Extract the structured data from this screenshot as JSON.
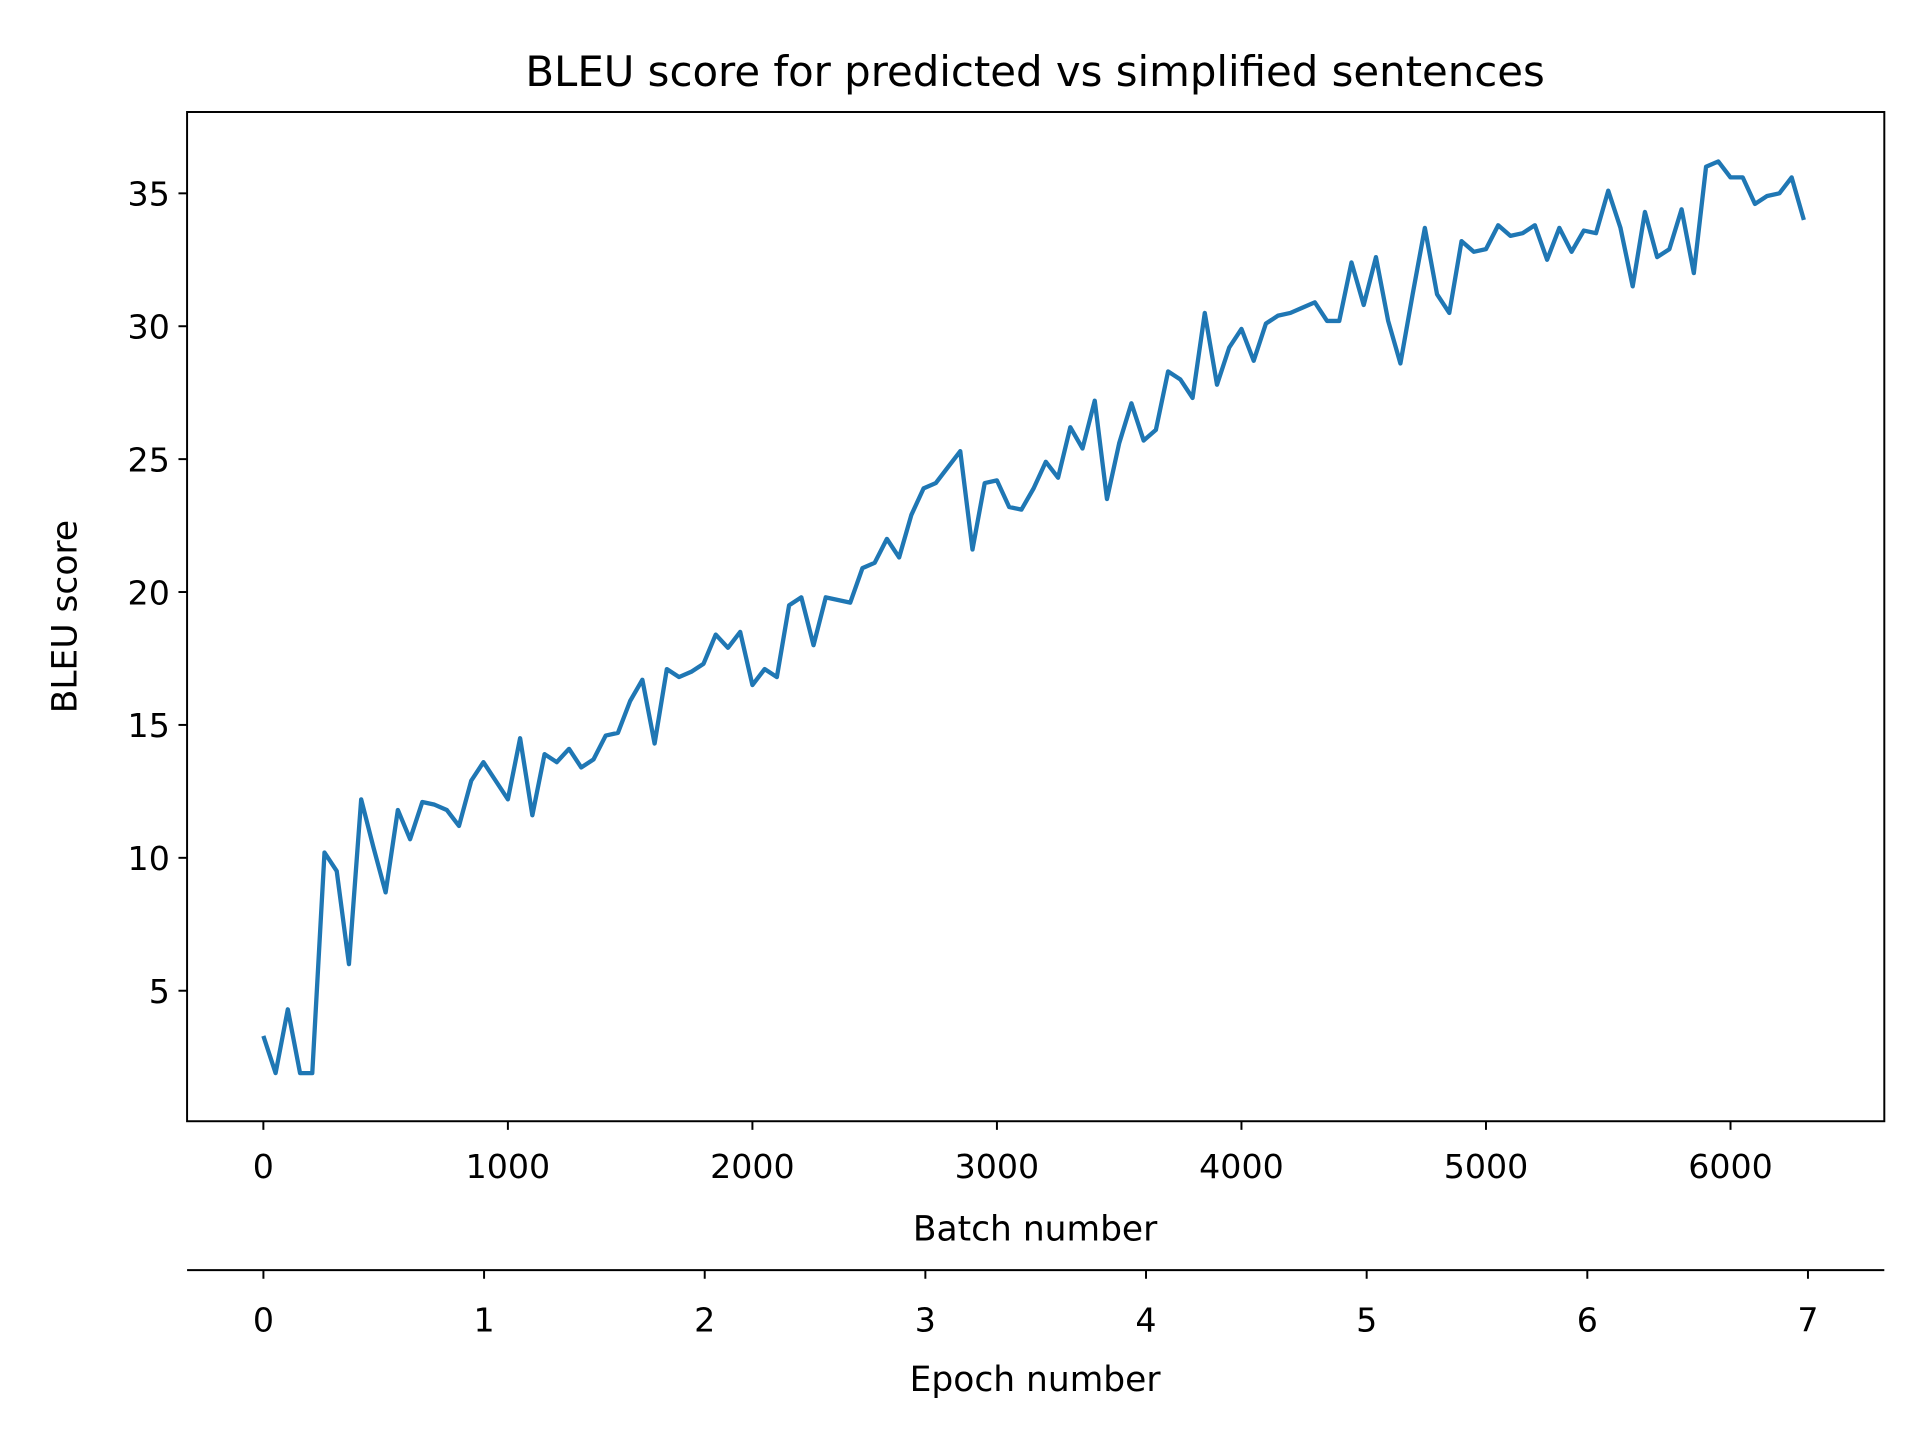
{
  "chart_data": {
    "type": "line",
    "title": "BLEU score for predicted vs simplified sentences",
    "xlabel": "Batch number",
    "ylabel": "BLEU score",
    "x2label": "Epoch number",
    "x": [
      0,
      50,
      100,
      150,
      200,
      250,
      300,
      350,
      400,
      450,
      500,
      550,
      600,
      650,
      700,
      750,
      800,
      850,
      900,
      950,
      1000,
      1050,
      1100,
      1150,
      1200,
      1250,
      1300,
      1350,
      1400,
      1450,
      1500,
      1550,
      1600,
      1650,
      1700,
      1750,
      1800,
      1850,
      1900,
      1950,
      2000,
      2050,
      2100,
      2150,
      2200,
      2250,
      2300,
      2350,
      2400,
      2450,
      2500,
      2550,
      2600,
      2650,
      2700,
      2750,
      2800,
      2850,
      2900,
      2950,
      3000,
      3050,
      3100,
      3150,
      3200,
      3250,
      3300,
      3350,
      3400,
      3450,
      3500,
      3550,
      3600,
      3650,
      3700,
      3750,
      3800,
      3850,
      3900,
      3950,
      4000,
      4050,
      4100,
      4150,
      4200,
      4250,
      4300,
      4350,
      4400,
      4450,
      4500,
      4550,
      4600,
      4650,
      4700,
      4750,
      4800,
      4850,
      4900,
      4950,
      5000,
      5050,
      5100,
      5150,
      5200,
      5250,
      5300,
      5350,
      5400,
      5450,
      5500,
      5550,
      5600,
      5650,
      5700,
      5750,
      5800,
      5850,
      5900,
      5950,
      6000,
      6050,
      6100,
      6150,
      6200,
      6250,
      6300
    ],
    "series": [
      {
        "name": "BLEU score",
        "color": "#1f77b4",
        "values": [
          3.3,
          1.9,
          4.3,
          1.9,
          1.9,
          10.2,
          9.5,
          6.0,
          12.2,
          10.4,
          8.7,
          11.8,
          10.7,
          12.1,
          12.0,
          11.8,
          11.2,
          12.9,
          13.6,
          12.9,
          12.2,
          14.5,
          11.6,
          13.9,
          13.6,
          14.1,
          13.4,
          13.7,
          14.6,
          14.7,
          15.9,
          16.7,
          14.3,
          17.1,
          16.8,
          17.0,
          17.3,
          18.4,
          17.9,
          18.5,
          16.5,
          17.1,
          16.8,
          19.5,
          19.8,
          18.0,
          19.8,
          19.7,
          19.6,
          20.9,
          21.1,
          22.0,
          21.3,
          22.9,
          23.9,
          24.1,
          24.7,
          25.3,
          21.6,
          24.1,
          24.2,
          23.2,
          23.1,
          23.9,
          24.9,
          24.3,
          26.2,
          25.4,
          27.2,
          23.5,
          25.6,
          27.1,
          25.7,
          26.1,
          28.3,
          28.0,
          27.3,
          30.5,
          27.8,
          29.2,
          29.9,
          28.7,
          30.1,
          30.4,
          30.5,
          30.7,
          30.9,
          30.2,
          30.2,
          32.4,
          30.8,
          32.6,
          30.2,
          28.6,
          31.2,
          33.7,
          31.2,
          30.5,
          33.2,
          32.8,
          32.9,
          33.8,
          33.4,
          33.5,
          33.8,
          32.5,
          33.7,
          32.8,
          33.6,
          33.5,
          35.1,
          33.7,
          31.5,
          34.3,
          32.6,
          32.9,
          34.4,
          32.0,
          36.0,
          36.2,
          35.6,
          35.6,
          34.6,
          34.9,
          35.0,
          35.6,
          34.0
        ]
      }
    ],
    "xlim": [
      -312,
      6629
    ],
    "xticks": [
      0,
      1000,
      2000,
      3000,
      4000,
      5000,
      6000
    ],
    "ylim": [
      0.09,
      38.06
    ],
    "yticks": [
      5,
      10,
      15,
      20,
      25,
      30,
      35
    ],
    "x2lim": [
      -0.346,
      7.346
    ],
    "x2ticks": [
      0,
      1,
      2,
      3,
      4,
      5,
      6,
      7
    ]
  }
}
